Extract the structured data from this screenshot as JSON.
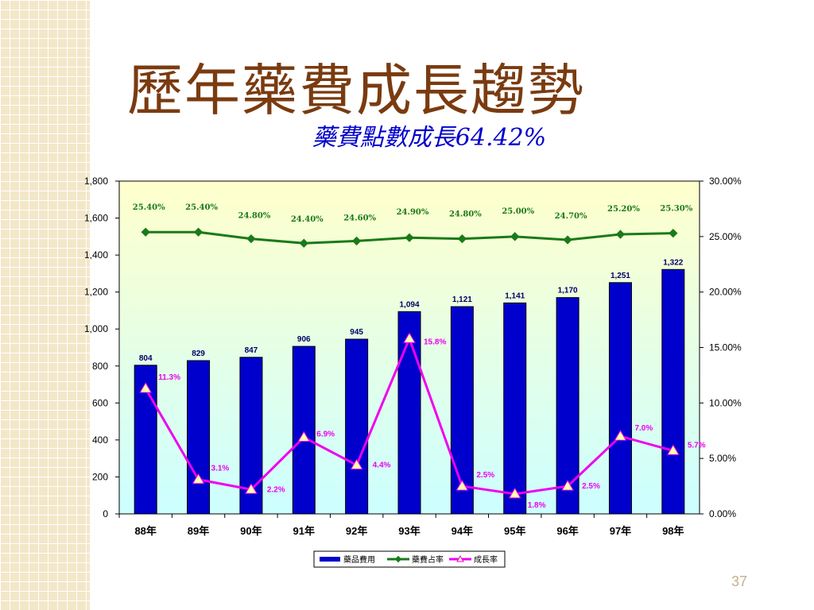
{
  "slide": {
    "title": "歷年藥費成長趨勢",
    "subtitle": "藥費點數成長64.42%",
    "page_number": "37"
  },
  "colors": {
    "bar": "#0000cc",
    "share_line": "#1a7a1a",
    "growth_line": "#ee00ee",
    "marker_fill": "#ffffaa",
    "title": "#7a3b10",
    "subtitle": "#0000cc"
  },
  "chart_data": {
    "type": "bar",
    "categories": [
      "88年",
      "89年",
      "90年",
      "91年",
      "92年",
      "93年",
      "94年",
      "95年",
      "96年",
      "97年",
      "98年"
    ],
    "series": [
      {
        "name": "藥品費用",
        "type": "bar",
        "axis": "left",
        "values": [
          804,
          829,
          847,
          906,
          945,
          1094,
          1121,
          1141,
          1170,
          1251,
          1322
        ],
        "labels": [
          "804",
          "829",
          "847",
          "906",
          "945",
          "1,094",
          "1,121",
          "1,141",
          "1,170",
          "1,251",
          "1,322"
        ]
      },
      {
        "name": "藥費占率",
        "type": "line",
        "axis": "right",
        "values": [
          25.4,
          25.4,
          24.8,
          24.4,
          24.6,
          24.9,
          24.8,
          25.0,
          24.7,
          25.2,
          25.3
        ],
        "labels": [
          "25.40%",
          "25.40%",
          "24.80%",
          "24.40%",
          "24.60%",
          "24.90%",
          "24.80%",
          "25.00%",
          "24.70%",
          "25.20%",
          "25.30%"
        ]
      },
      {
        "name": "成長率",
        "type": "line",
        "axis": "right",
        "values": [
          11.3,
          3.1,
          2.2,
          6.9,
          4.4,
          15.8,
          2.5,
          1.8,
          2.5,
          7.0,
          5.7
        ],
        "labels": [
          "11.3%",
          "3.1%",
          "2.2%",
          "6.9%",
          "4.4%",
          "15.8%",
          "2.5%",
          "1.8%",
          "2.5%",
          "7.0%",
          "5.7%"
        ]
      }
    ],
    "y_left": {
      "min": 0,
      "max": 1800,
      "ticks": [
        0,
        200,
        400,
        600,
        800,
        1000,
        1200,
        1400,
        1600,
        1800
      ],
      "tick_labels": [
        "0",
        "200",
        "400",
        "600",
        "800",
        "1,000",
        "1,200",
        "1,400",
        "1,600",
        "1,800"
      ]
    },
    "y_right": {
      "min": 0,
      "max": 30,
      "ticks": [
        0,
        5,
        10,
        15,
        20,
        25,
        30
      ],
      "tick_labels": [
        "0.00%",
        "5.00%",
        "10.00%",
        "15.00%",
        "20.00%",
        "25.00%",
        "30.00%"
      ]
    },
    "grid": false,
    "legend_position": "bottom"
  }
}
